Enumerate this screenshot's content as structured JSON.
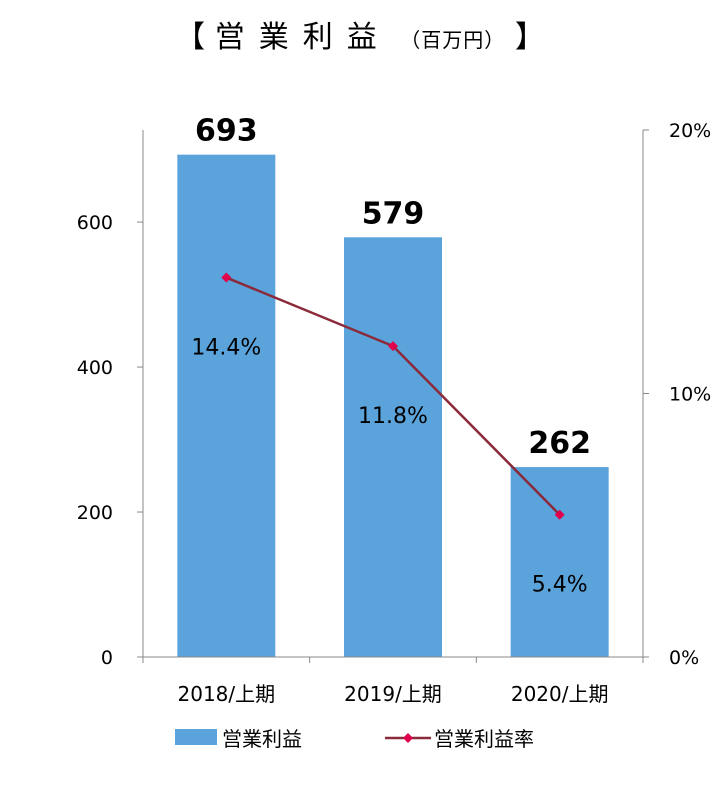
{
  "title": {
    "open_bracket": "【",
    "main": "営業利益",
    "unit": "（百万円）",
    "close_bracket": "】"
  },
  "colors": {
    "bar": "#5BA3DB",
    "line": "#8B2A3A",
    "marker": "#E0004B",
    "axis": "#888888"
  },
  "chart_data": {
    "type": "bar",
    "categories": [
      "2018/上期",
      "2019/上期",
      "2020/上期"
    ],
    "series": [
      {
        "name": "営業利益",
        "type": "bar",
        "axis": "left",
        "values": [
          693,
          579,
          262
        ],
        "labels": [
          "693",
          "579",
          "262"
        ]
      },
      {
        "name": "営業利益率",
        "type": "line",
        "axis": "right",
        "values": [
          14.4,
          11.8,
          5.4
        ],
        "labels": [
          "14.4%",
          "11.8%",
          "5.4%"
        ]
      }
    ],
    "y_left": {
      "min": 0,
      "max": 727,
      "ticks": [
        0,
        200,
        400,
        600
      ],
      "tick_labels": [
        "0",
        "200",
        "400",
        "600"
      ]
    },
    "y_right": {
      "min": 0,
      "max": 20,
      "ticks": [
        0,
        10,
        20
      ],
      "tick_labels": [
        "0%",
        "10%",
        "20%"
      ]
    },
    "legend_position": "bottom",
    "grid": false
  }
}
